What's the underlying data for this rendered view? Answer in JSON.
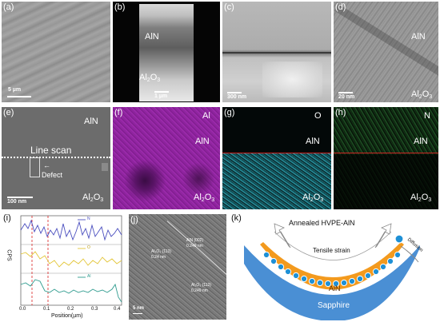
{
  "panels": {
    "a": {
      "label": "(a)",
      "scale": "5 µm"
    },
    "b": {
      "label": "(b)",
      "top_text": "AlN",
      "bottom_main": "Al",
      "bottom_sub1": "2",
      "bottom_mid": "O",
      "bottom_sub2": "3",
      "scale": "1 µm"
    },
    "c": {
      "label": "(c)",
      "scale": "300 nm"
    },
    "d": {
      "label": "(d)",
      "top_text": "AlN",
      "bottom_main": "Al",
      "bottom_sub1": "2",
      "bottom_mid": "O",
      "bottom_sub2": "3",
      "scale": "20 nm"
    },
    "e": {
      "label": "(e)",
      "top_text": "AlN",
      "line_scan": "Line scan",
      "defect": "Defect",
      "bottom_main": "Al",
      "bottom_sub1": "2",
      "bottom_mid": "O",
      "bottom_sub2": "3",
      "scale": "100 nm"
    },
    "f": {
      "label": "(f)",
      "element": "Al",
      "mid_text": "AlN",
      "bottom_main": "Al",
      "bottom_sub1": "2",
      "bottom_mid": "O",
      "bottom_sub2": "3"
    },
    "g": {
      "label": "(g)",
      "element": "O",
      "mid_text": "AlN",
      "bottom_main": "Al",
      "bottom_sub1": "2",
      "bottom_mid": "O",
      "bottom_sub2": "3"
    },
    "h": {
      "label": "(h)",
      "element": "N",
      "mid_text": "AlN",
      "bottom_main": "Al",
      "bottom_sub1": "2",
      "bottom_mid": "O",
      "bottom_sub2": "3"
    },
    "i": {
      "label": "(i)",
      "ylabel": "CPS",
      "xlabel": "Position(µm)",
      "ticks": [
        "0.0",
        "0.1",
        "0.2",
        "0.3",
        "0.4"
      ],
      "legend": [
        "N",
        "O",
        "Al"
      ]
    },
    "j": {
      "label": "(j)",
      "ann1a": "AlN (002)",
      "ann1b": "0.249 nm",
      "ann2a": "Al₂O₃ (113)",
      "ann2b": "0.24 nm",
      "ann3a": "Al₂O₃ (113)",
      "ann3b": "0.249 nm",
      "scale": "5 nm"
    },
    "k": {
      "label": "(k)",
      "title": "Annealed HVPE-AlN",
      "tensile": "Tensile strain",
      "diffusion": "Diffusion",
      "aln": "AlN",
      "sapphire": "Sapphire"
    }
  },
  "colors": {
    "edx_al": "#8a1f9a",
    "edx_o": "#2aa7b8",
    "edx_n": "#2f8a3a",
    "line_n": "#4b4fbf",
    "line_o": "#e3c63a",
    "line_al": "#2e9b8e",
    "aln_layer": "#f39a1e",
    "sapphire": "#4a8fd4",
    "atom": "#1e90d6"
  }
}
